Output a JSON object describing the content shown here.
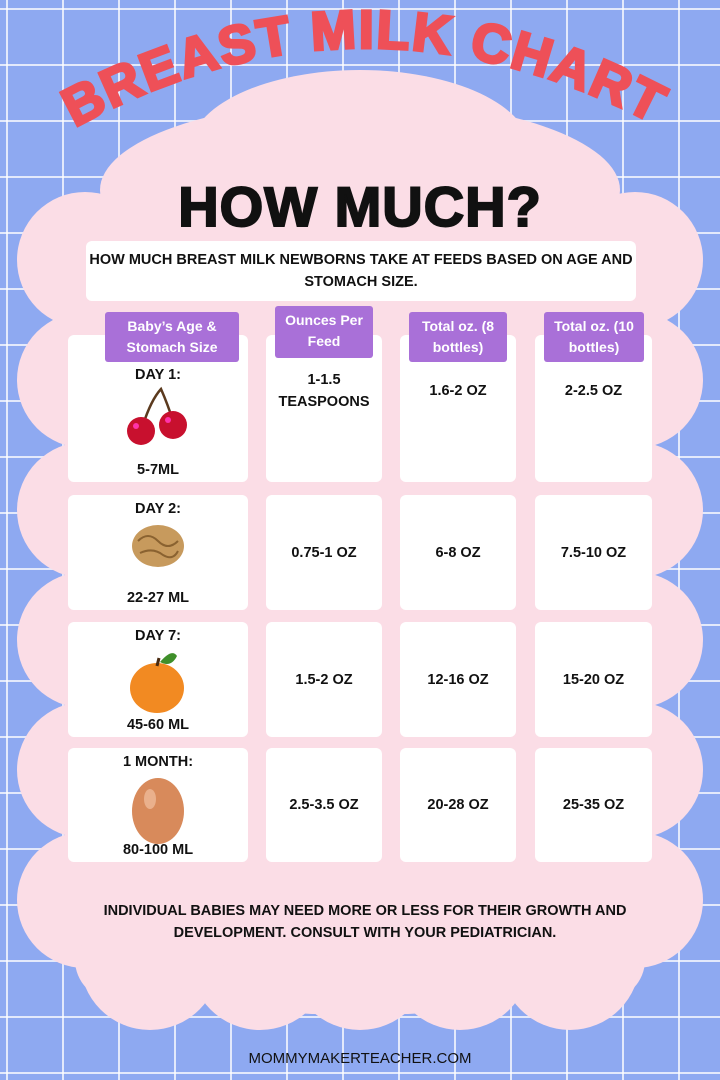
{
  "title": "BREAST MILK CHART",
  "subtitle": "HOW MUCH?",
  "intro": "HOW MUCH BREAST MILK NEWBORNS TAKE AT FEEDS BASED ON AGE AND STOMACH SIZE.",
  "colors": {
    "background": "#8ea9f1",
    "panel": "#fbdde6",
    "header": "#a970d8",
    "title": "#ee5058"
  },
  "headers": [
    "Baby’s Age & Stomach Size",
    "Ounces Per Feed",
    "Total oz. (8 bottles)",
    "Total oz. (10 bottles)"
  ],
  "rows": [
    {
      "age": "DAY 1:",
      "size": "5-7ML",
      "icon": "cherry-icon",
      "per_feed": "1-1.5 TEASPOONS",
      "total8": "1.6-2 OZ",
      "total10": "2-2.5 OZ"
    },
    {
      "age": "DAY 2:",
      "size": "22-27 ML",
      "icon": "walnut-icon",
      "per_feed": "0.75-1 OZ",
      "total8": "6-8 OZ",
      "total10": "7.5-10 OZ"
    },
    {
      "age": "DAY 7:",
      "size": "45-60 ML",
      "icon": "apricot-icon",
      "per_feed": "1.5-2 OZ",
      "total8": "12-16 OZ",
      "total10": "15-20 OZ"
    },
    {
      "age": "1 MONTH:",
      "size": "80-100 ML",
      "icon": "egg-icon",
      "per_feed": "2.5-3.5 OZ",
      "total8": "20-28 OZ",
      "total10": "25-35 OZ"
    }
  ],
  "footer": "INDIVIDUAL BABIES MAY NEED MORE OR LESS FOR THEIR GROWTH AND DEVELOPMENT. CONSULT WITH YOUR PEDIATRICIAN.",
  "website": "MOMMYMAKERTEACHER.COM"
}
